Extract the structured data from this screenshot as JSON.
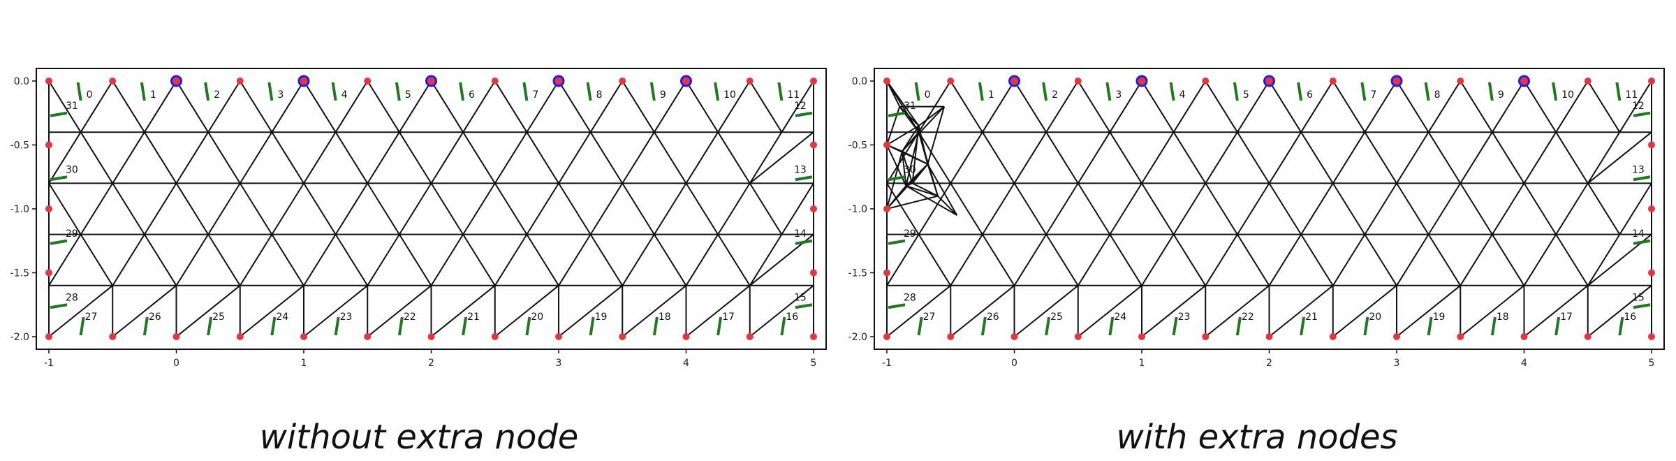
{
  "panels": [
    {
      "id": "left",
      "caption": "without extra node",
      "extra_nodes": []
    },
    {
      "id": "right",
      "caption": "with extra nodes",
      "extra_nodes": [
        [
          -0.9,
          -0.2
        ],
        [
          -0.75,
          -0.35
        ],
        [
          -0.88,
          -0.55
        ],
        [
          -0.68,
          -0.65
        ],
        [
          -0.85,
          -0.82
        ],
        [
          -0.6,
          -0.9
        ]
      ]
    }
  ],
  "axes": {
    "xlim": [
      -1,
      5
    ],
    "ylim": [
      -2,
      0
    ],
    "xticks": [
      "-1",
      "0",
      "1",
      "2",
      "3",
      "4",
      "5"
    ],
    "yticks": [
      "0.0",
      "-0.5",
      "-1.0",
      "-1.5",
      "-2.0"
    ]
  },
  "mesh": {
    "type": "triangular mesh",
    "x_range": [
      -1,
      5
    ],
    "y_range": [
      -2,
      0
    ],
    "boundary_node_spacing": 0.5,
    "interior_rows_y": [
      -0.4,
      -0.8,
      -1.2,
      -1.6
    ]
  },
  "node_markers": {
    "red_fill": "#e8343a",
    "blue_ring_x": [
      0,
      1,
      2,
      3,
      4
    ],
    "blue_ring_color": "#1a1aff"
  },
  "boundary_labels": {
    "color": "#1e7a1e",
    "top": [
      "0",
      "1",
      "2",
      "3",
      "4",
      "5",
      "6",
      "7",
      "8",
      "9",
      "10",
      "11"
    ],
    "right": [
      "12",
      "13",
      "14",
      "15"
    ],
    "bottom": [
      "16",
      "17",
      "18",
      "19",
      "20",
      "21",
      "22",
      "23",
      "24",
      "25",
      "26",
      "27"
    ],
    "left": [
      "28",
      "29",
      "30",
      "31"
    ]
  }
}
